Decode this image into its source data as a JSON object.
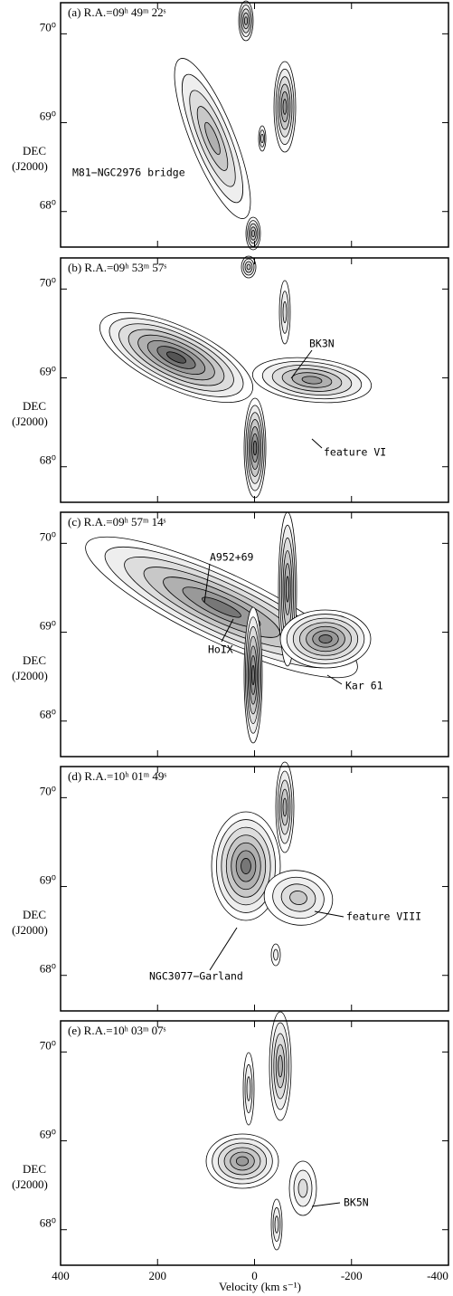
{
  "panels": [
    {
      "label": "(a) R.A.=09ʰ 49ᵐ 22ˢ",
      "annotations": [
        "M81−NGC2976 bridge"
      ]
    },
    {
      "label": "(b) R.A.=09ʰ 53ᵐ 57ˢ",
      "annotations": [
        "BK3N",
        "feature VI"
      ]
    },
    {
      "label": "(c) R.A.=09ʰ 57ᵐ 14ˢ",
      "annotations": [
        "A952+69",
        "HoIX",
        "Kar 61"
      ]
    },
    {
      "label": "(d) R.A.=10ʰ 01ᵐ 49ˢ",
      "annotations": [
        "NGC3077−Garland",
        "feature VIII"
      ]
    },
    {
      "label": "(e) R.A.=10ʰ 03ᵐ 07ˢ",
      "annotations": [
        "BK5N"
      ]
    }
  ],
  "y_axis": {
    "label_line1": "DEC",
    "label_line2": "(J2000)",
    "lim": [
      67.6,
      70.35
    ],
    "ticks": [
      {
        "value": 68,
        "label": "68⁰"
      },
      {
        "value": 69,
        "label": "69⁰"
      },
      {
        "value": 70,
        "label": "70⁰"
      }
    ]
  },
  "x_axis": {
    "label": "Velocity (km s⁻¹)",
    "lim": [
      400,
      -400
    ],
    "ticks": [
      400,
      200,
      0,
      -200,
      -400
    ]
  }
}
